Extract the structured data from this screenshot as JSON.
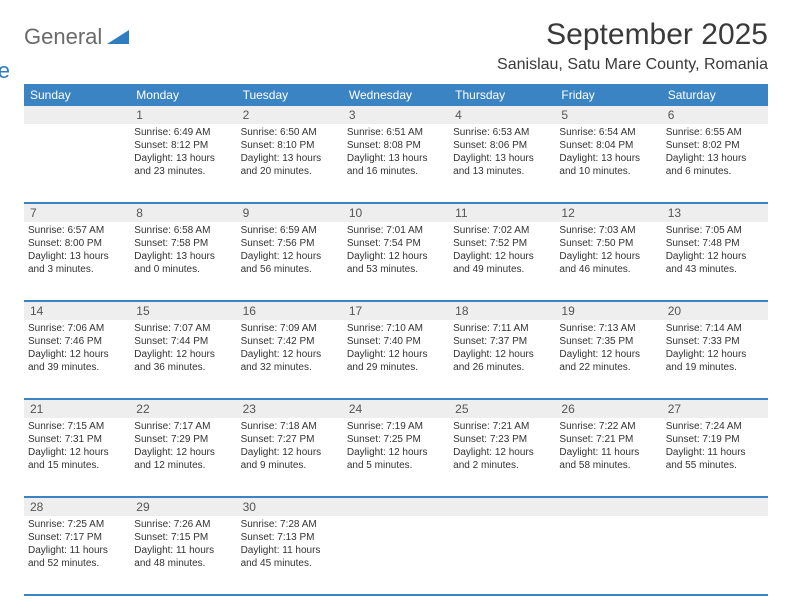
{
  "brand": {
    "part1": "General",
    "part2": "Blue"
  },
  "title": "September 2025",
  "location": "Sanislau, Satu Mare County, Romania",
  "colors": {
    "header_bg": "#3b84c4",
    "daynum_bg": "#eeeeee",
    "text": "#333333",
    "brand_gray": "#6a6a6a",
    "brand_blue": "#2f7dc0"
  },
  "dow": [
    "Sunday",
    "Monday",
    "Tuesday",
    "Wednesday",
    "Thursday",
    "Friday",
    "Saturday"
  ],
  "weeks": [
    {
      "nums": [
        "",
        "1",
        "2",
        "3",
        "4",
        "5",
        "6"
      ],
      "cells": [
        {
          "lines": []
        },
        {
          "lines": [
            "Sunrise: 6:49 AM",
            "Sunset: 8:12 PM",
            "Daylight: 13 hours",
            "and 23 minutes."
          ]
        },
        {
          "lines": [
            "Sunrise: 6:50 AM",
            "Sunset: 8:10 PM",
            "Daylight: 13 hours",
            "and 20 minutes."
          ]
        },
        {
          "lines": [
            "Sunrise: 6:51 AM",
            "Sunset: 8:08 PM",
            "Daylight: 13 hours",
            "and 16 minutes."
          ]
        },
        {
          "lines": [
            "Sunrise: 6:53 AM",
            "Sunset: 8:06 PM",
            "Daylight: 13 hours",
            "and 13 minutes."
          ]
        },
        {
          "lines": [
            "Sunrise: 6:54 AM",
            "Sunset: 8:04 PM",
            "Daylight: 13 hours",
            "and 10 minutes."
          ]
        },
        {
          "lines": [
            "Sunrise: 6:55 AM",
            "Sunset: 8:02 PM",
            "Daylight: 13 hours",
            "and 6 minutes."
          ]
        }
      ]
    },
    {
      "nums": [
        "7",
        "8",
        "9",
        "10",
        "11",
        "12",
        "13"
      ],
      "cells": [
        {
          "lines": [
            "Sunrise: 6:57 AM",
            "Sunset: 8:00 PM",
            "Daylight: 13 hours",
            "and 3 minutes."
          ]
        },
        {
          "lines": [
            "Sunrise: 6:58 AM",
            "Sunset: 7:58 PM",
            "Daylight: 13 hours",
            "and 0 minutes."
          ]
        },
        {
          "lines": [
            "Sunrise: 6:59 AM",
            "Sunset: 7:56 PM",
            "Daylight: 12 hours",
            "and 56 minutes."
          ]
        },
        {
          "lines": [
            "Sunrise: 7:01 AM",
            "Sunset: 7:54 PM",
            "Daylight: 12 hours",
            "and 53 minutes."
          ]
        },
        {
          "lines": [
            "Sunrise: 7:02 AM",
            "Sunset: 7:52 PM",
            "Daylight: 12 hours",
            "and 49 minutes."
          ]
        },
        {
          "lines": [
            "Sunrise: 7:03 AM",
            "Sunset: 7:50 PM",
            "Daylight: 12 hours",
            "and 46 minutes."
          ]
        },
        {
          "lines": [
            "Sunrise: 7:05 AM",
            "Sunset: 7:48 PM",
            "Daylight: 12 hours",
            "and 43 minutes."
          ]
        }
      ]
    },
    {
      "nums": [
        "14",
        "15",
        "16",
        "17",
        "18",
        "19",
        "20"
      ],
      "cells": [
        {
          "lines": [
            "Sunrise: 7:06 AM",
            "Sunset: 7:46 PM",
            "Daylight: 12 hours",
            "and 39 minutes."
          ]
        },
        {
          "lines": [
            "Sunrise: 7:07 AM",
            "Sunset: 7:44 PM",
            "Daylight: 12 hours",
            "and 36 minutes."
          ]
        },
        {
          "lines": [
            "Sunrise: 7:09 AM",
            "Sunset: 7:42 PM",
            "Daylight: 12 hours",
            "and 32 minutes."
          ]
        },
        {
          "lines": [
            "Sunrise: 7:10 AM",
            "Sunset: 7:40 PM",
            "Daylight: 12 hours",
            "and 29 minutes."
          ]
        },
        {
          "lines": [
            "Sunrise: 7:11 AM",
            "Sunset: 7:37 PM",
            "Daylight: 12 hours",
            "and 26 minutes."
          ]
        },
        {
          "lines": [
            "Sunrise: 7:13 AM",
            "Sunset: 7:35 PM",
            "Daylight: 12 hours",
            "and 22 minutes."
          ]
        },
        {
          "lines": [
            "Sunrise: 7:14 AM",
            "Sunset: 7:33 PM",
            "Daylight: 12 hours",
            "and 19 minutes."
          ]
        }
      ]
    },
    {
      "nums": [
        "21",
        "22",
        "23",
        "24",
        "25",
        "26",
        "27"
      ],
      "cells": [
        {
          "lines": [
            "Sunrise: 7:15 AM",
            "Sunset: 7:31 PM",
            "Daylight: 12 hours",
            "and 15 minutes."
          ]
        },
        {
          "lines": [
            "Sunrise: 7:17 AM",
            "Sunset: 7:29 PM",
            "Daylight: 12 hours",
            "and 12 minutes."
          ]
        },
        {
          "lines": [
            "Sunrise: 7:18 AM",
            "Sunset: 7:27 PM",
            "Daylight: 12 hours",
            "and 9 minutes."
          ]
        },
        {
          "lines": [
            "Sunrise: 7:19 AM",
            "Sunset: 7:25 PM",
            "Daylight: 12 hours",
            "and 5 minutes."
          ]
        },
        {
          "lines": [
            "Sunrise: 7:21 AM",
            "Sunset: 7:23 PM",
            "Daylight: 12 hours",
            "and 2 minutes."
          ]
        },
        {
          "lines": [
            "Sunrise: 7:22 AM",
            "Sunset: 7:21 PM",
            "Daylight: 11 hours",
            "and 58 minutes."
          ]
        },
        {
          "lines": [
            "Sunrise: 7:24 AM",
            "Sunset: 7:19 PM",
            "Daylight: 11 hours",
            "and 55 minutes."
          ]
        }
      ]
    },
    {
      "nums": [
        "28",
        "29",
        "30",
        "",
        "",
        "",
        ""
      ],
      "cells": [
        {
          "lines": [
            "Sunrise: 7:25 AM",
            "Sunset: 7:17 PM",
            "Daylight: 11 hours",
            "and 52 minutes."
          ]
        },
        {
          "lines": [
            "Sunrise: 7:26 AM",
            "Sunset: 7:15 PM",
            "Daylight: 11 hours",
            "and 48 minutes."
          ]
        },
        {
          "lines": [
            "Sunrise: 7:28 AM",
            "Sunset: 7:13 PM",
            "Daylight: 11 hours",
            "and 45 minutes."
          ]
        },
        {
          "lines": []
        },
        {
          "lines": []
        },
        {
          "lines": []
        },
        {
          "lines": []
        }
      ]
    }
  ]
}
